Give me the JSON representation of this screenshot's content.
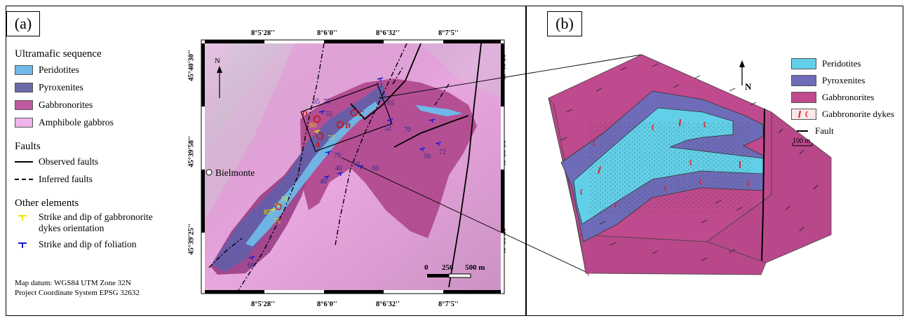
{
  "panels": {
    "a": {
      "label": "(a)"
    },
    "b": {
      "label": "(b)"
    }
  },
  "legend": {
    "ultramafic_title": "Ultramafic sequence",
    "ultramafic_items": [
      {
        "label": "Peridotites",
        "color": "#6fb8e8"
      },
      {
        "label": "Pyroxenites",
        "color": "#6a6aa6"
      },
      {
        "label": "Gabbronorites",
        "color": "#c05aa0"
      },
      {
        "label": "Amphibole gabbros",
        "color": "#f0b4ea"
      }
    ],
    "faults_title": "Faults",
    "fault_items": [
      {
        "label": "Observed faults"
      },
      {
        "label": "Inferred faults"
      }
    ],
    "other_title": "Other elements",
    "other_items": [
      {
        "label_line1": "Strike and dip of gabbronorite",
        "label_line2": "dykes orientation",
        "color": "#e8e800"
      },
      {
        "label_line1": "Strike and dip of foliation",
        "color": "#1a1ad0"
      }
    ],
    "datum_line1": "Map datum: WGS84 UTM Zone 32N",
    "datum_line2": "Project Coordinate System EPSG 32632"
  },
  "map": {
    "lon_ticks": [
      "8°5'28''",
      "8°6'0''",
      "8°6'32''",
      "8°7'5''"
    ],
    "lat_ticks": [
      "45°40'30''",
      "45°39'58''",
      "45°39'25''"
    ],
    "town": "Bielmonte",
    "north": "N",
    "scale": {
      "zero": "0",
      "mid": "250",
      "end": "500 m"
    },
    "sites": [
      "A",
      "B",
      "C",
      "D"
    ],
    "orientations": [
      "65",
      "75",
      "55",
      "80",
      "75",
      "65",
      "71",
      "52",
      "70",
      "79",
      "40",
      "50",
      "60",
      "40",
      "56",
      "72",
      "85",
      "58",
      "75",
      "68"
    ]
  },
  "block": {
    "north": "N",
    "scale": "100 m",
    "legend": [
      {
        "label": "Peridotites",
        "color": "#62cfe8"
      },
      {
        "label": "Pyroxenites",
        "color": "#6e6cb8"
      },
      {
        "label": "Gabbronorites",
        "color": "#c04a8e"
      },
      {
        "label": "Gabbronorite dykes",
        "color": "#fbe8ea"
      },
      {
        "label": "Fault"
      }
    ]
  }
}
